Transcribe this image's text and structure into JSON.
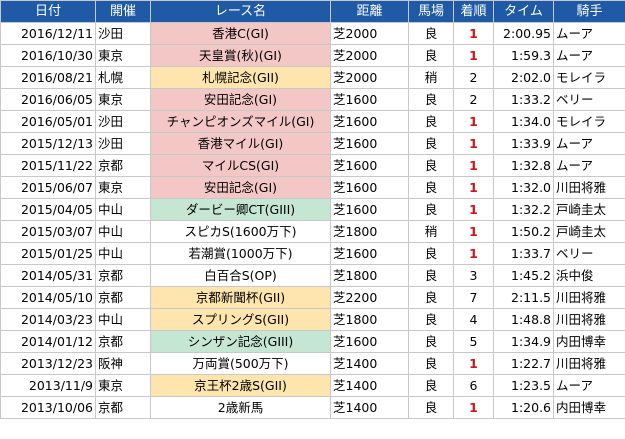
{
  "headers": {
    "date": "日付",
    "venue": "開催",
    "race": "レース名",
    "distance": "距離",
    "track": "馬場",
    "place": "着順",
    "time": "タイム",
    "jockey": "騎手"
  },
  "grade_colors": {
    "G1": "#f4c7c7",
    "G2": "#fde5ad",
    "G3": "#c4e6d2",
    "header": "#1f5aa6",
    "win": "#d01414"
  },
  "rows": [
    {
      "date": "2016/12/11",
      "venue": "沙田",
      "race": "香港C(GI)",
      "grade": "G1",
      "distance": "芝2000",
      "track": "良",
      "place": "1",
      "time": "2:00.95",
      "jockey": "ムーア"
    },
    {
      "date": "2016/10/30",
      "venue": "東京",
      "race": "天皇賞(秋)(GI)",
      "grade": "G1",
      "distance": "芝2000",
      "track": "良",
      "place": "1",
      "time": "1:59.3",
      "jockey": "ムーア"
    },
    {
      "date": "2016/08/21",
      "venue": "札幌",
      "race": "札幌記念(GII)",
      "grade": "G2",
      "distance": "芝2000",
      "track": "稍",
      "place": "2",
      "time": "2:02.0",
      "jockey": "モレイラ"
    },
    {
      "date": "2016/06/05",
      "venue": "東京",
      "race": "安田記念(GI)",
      "grade": "G1",
      "distance": "芝1600",
      "track": "良",
      "place": "2",
      "time": "1:33.2",
      "jockey": "ベリー"
    },
    {
      "date": "2016/05/01",
      "venue": "沙田",
      "race": "チャンピオンズマイル(GI)",
      "grade": "G1",
      "distance": "芝1600",
      "track": "良",
      "place": "1",
      "time": "1:34.0",
      "jockey": "モレイラ"
    },
    {
      "date": "2015/12/13",
      "venue": "沙田",
      "race": "香港マイル(GI)",
      "grade": "G1",
      "distance": "芝1600",
      "track": "良",
      "place": "1",
      "time": "1:33.9",
      "jockey": "ムーア"
    },
    {
      "date": "2015/11/22",
      "venue": "京都",
      "race": "マイルCS(GI)",
      "grade": "G1",
      "distance": "芝1600",
      "track": "良",
      "place": "1",
      "time": "1:32.8",
      "jockey": "ムーア"
    },
    {
      "date": "2015/06/07",
      "venue": "東京",
      "race": "安田記念(GI)",
      "grade": "G1",
      "distance": "芝1600",
      "track": "良",
      "place": "1",
      "time": "1:32.0",
      "jockey": "川田将雅"
    },
    {
      "date": "2015/04/05",
      "venue": "中山",
      "race": "ダービー卿CT(GIII)",
      "grade": "G3",
      "distance": "芝1600",
      "track": "良",
      "place": "1",
      "time": "1:32.2",
      "jockey": "戸崎圭太"
    },
    {
      "date": "2015/03/07",
      "venue": "中山",
      "race": "スピカS(1600万下)",
      "grade": "",
      "distance": "芝1800",
      "track": "稍",
      "place": "1",
      "time": "1:50.2",
      "jockey": "戸崎圭太"
    },
    {
      "date": "2015/01/25",
      "venue": "中山",
      "race": "若潮賞(1000万下)",
      "grade": "",
      "distance": "芝1600",
      "track": "良",
      "place": "1",
      "time": "1:33.7",
      "jockey": "ベリー"
    },
    {
      "date": "2014/05/31",
      "venue": "京都",
      "race": "白百合S(OP)",
      "grade": "",
      "distance": "芝1800",
      "track": "良",
      "place": "3",
      "time": "1:45.2",
      "jockey": "浜中俊"
    },
    {
      "date": "2014/05/10",
      "venue": "京都",
      "race": "京都新聞杯(GII)",
      "grade": "G2",
      "distance": "芝2200",
      "track": "良",
      "place": "7",
      "time": "2:11.5",
      "jockey": "川田将雅"
    },
    {
      "date": "2014/03/23",
      "venue": "中山",
      "race": "スプリングS(GII)",
      "grade": "G2",
      "distance": "芝1800",
      "track": "良",
      "place": "4",
      "time": "1:48.8",
      "jockey": "川田将雅"
    },
    {
      "date": "2014/01/12",
      "venue": "京都",
      "race": "シンザン記念(GIII)",
      "grade": "G3",
      "distance": "芝1600",
      "track": "良",
      "place": "5",
      "time": "1:34.9",
      "jockey": "内田博幸"
    },
    {
      "date": "2013/12/23",
      "venue": "阪神",
      "race": "万両賞(500万下)",
      "grade": "",
      "distance": "芝1400",
      "track": "良",
      "place": "1",
      "time": "1:22.7",
      "jockey": "川田将雅"
    },
    {
      "date": "2013/11/9",
      "venue": "東京",
      "race": "京王杯2歳S(GII)",
      "grade": "G2",
      "distance": "芝1400",
      "track": "良",
      "place": "6",
      "time": "1:23.5",
      "jockey": "ムーア"
    },
    {
      "date": "2013/10/06",
      "venue": "京都",
      "race": "2歳新馬",
      "grade": "",
      "distance": "芝1400",
      "track": "良",
      "place": "1",
      "time": "1:20.6",
      "jockey": "内田博幸"
    }
  ]
}
